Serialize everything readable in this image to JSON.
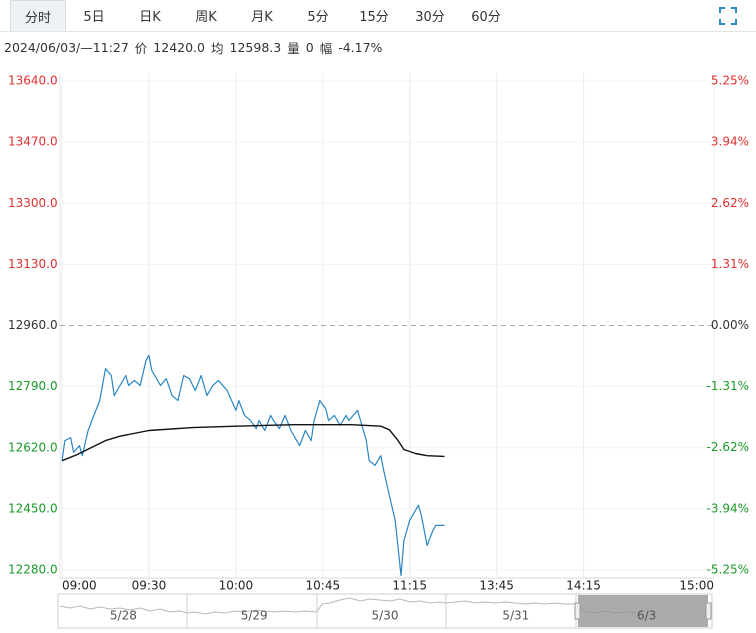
{
  "tabs": [
    "分时",
    "5日",
    "日K",
    "周K",
    "月K",
    "5分",
    "15分",
    "30分",
    "60分"
  ],
  "active_tab": "分时",
  "info": {
    "datetime": "2024/06/03/—11:27",
    "price_label": "价",
    "price": "12420.0",
    "avg_label": "均",
    "avg": "12598.3",
    "volume_label": "量",
    "volume": "0",
    "change_label": "幅",
    "change": "-4.17%"
  },
  "chart_data": {
    "type": "line",
    "baseline": 12960,
    "up_color": "#e0302f",
    "down_color": "#1a9a2a",
    "flat_color": "#333333",
    "ylim": [
      12280,
      13640
    ],
    "yticks": [
      {
        "value": 13640,
        "label": "13640.0"
      },
      {
        "value": 13470,
        "label": "13470.0"
      },
      {
        "value": 13300,
        "label": "13300.0"
      },
      {
        "value": 13130,
        "label": "13130.0"
      },
      {
        "value": 12960,
        "label": "12960.0"
      },
      {
        "value": 12790,
        "label": "12790.0"
      },
      {
        "value": 12620,
        "label": "12620.0"
      },
      {
        "value": 12450,
        "label": "12450.0"
      },
      {
        "value": 12280,
        "label": "12280.0"
      }
    ],
    "y2lim": [
      -5.25,
      5.25
    ],
    "y2ticks": [
      {
        "value": 5.25,
        "label": "5.25%"
      },
      {
        "value": 3.94,
        "label": "3.94%"
      },
      {
        "value": 2.62,
        "label": "2.62%"
      },
      {
        "value": 1.31,
        "label": "1.31%"
      },
      {
        "value": 0,
        "label": "0.00%"
      },
      {
        "value": -1.31,
        "label": "-1.31%"
      },
      {
        "value": -2.62,
        "label": "-2.62%"
      },
      {
        "value": -3.94,
        "label": "-3.94%"
      },
      {
        "value": -5.25,
        "label": "-5.25%"
      }
    ],
    "xlim": [
      0,
      225
    ],
    "xticks": [
      {
        "value": 0,
        "label": "09:00"
      },
      {
        "value": 30,
        "label": "09:30"
      },
      {
        "value": 60,
        "label": "10:00"
      },
      {
        "value": 90,
        "label": "10:45"
      },
      {
        "value": 120,
        "label": "11:15"
      },
      {
        "value": 150,
        "label": "13:45"
      },
      {
        "value": 180,
        "label": "14:15"
      },
      {
        "value": 225,
        "label": "15:00"
      }
    ],
    "series": [
      {
        "color": "#2a86c4",
        "x": [
          0,
          1,
          3,
          4,
          6,
          7,
          9,
          11,
          13,
          15,
          17,
          18,
          20,
          22,
          23,
          25,
          27,
          29,
          30,
          31,
          34,
          36,
          38,
          40,
          42,
          44,
          46,
          48,
          50,
          52,
          54,
          57,
          60,
          61,
          63,
          65,
          67,
          68,
          70,
          72,
          73,
          75,
          77,
          79,
          80,
          82,
          84,
          86,
          87,
          89,
          91,
          92,
          94,
          96,
          98,
          99,
          102,
          103,
          105,
          106,
          108,
          110,
          111,
          113,
          115,
          117,
          118,
          120,
          122,
          123,
          124,
          126,
          128,
          129,
          132
        ],
        "values": [
          12584,
          12640,
          12648,
          12607,
          12626,
          12598,
          12668,
          12710,
          12751,
          12840,
          12821,
          12765,
          12793,
          12821,
          12793,
          12807,
          12793,
          12863,
          12877,
          12835,
          12793,
          12812,
          12765,
          12751,
          12821,
          12812,
          12779,
          12821,
          12765,
          12793,
          12807,
          12779,
          12724,
          12751,
          12710,
          12696,
          12673,
          12696,
          12668,
          12710,
          12696,
          12673,
          12710,
          12668,
          12654,
          12626,
          12668,
          12640,
          12696,
          12751,
          12729,
          12696,
          12710,
          12682,
          12710,
          12696,
          12724,
          12696,
          12640,
          12584,
          12571,
          12598,
          12557,
          12487,
          12418,
          12265,
          12362,
          12418,
          12446,
          12460,
          12432,
          12348,
          12390,
          12404,
          12404
        ]
      },
      {
        "color": "#111111",
        "x": [
          0,
          5,
          10,
          15,
          20,
          30,
          45,
          60,
          80,
          100,
          110,
          113,
          116,
          118,
          122,
          126,
          132
        ],
        "values": [
          12584,
          12600,
          12620,
          12640,
          12652,
          12668,
          12676,
          12680,
          12684,
          12684,
          12680,
          12670,
          12640,
          12615,
          12604,
          12598,
          12596
        ]
      }
    ]
  },
  "navigator": {
    "labels": [
      "5/28",
      "5/29",
      "5/30",
      "5/31",
      "6/3"
    ]
  }
}
